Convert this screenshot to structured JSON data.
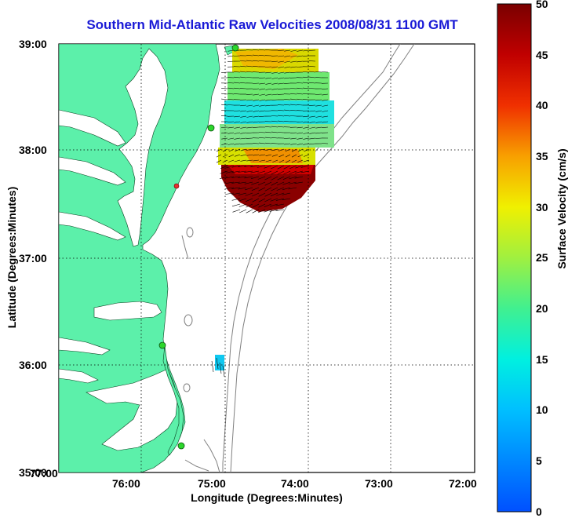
{
  "title": "Southern Mid-Atlantic Raw Velocities 2008/08/31 1100 GMT",
  "xlabel": "Longitude (Degrees:Minutes)",
  "ylabel": "Latitude (Degrees:Minutes)",
  "colorbar": {
    "label": "Surface Velocity (cm/s)",
    "ticks": [
      "0",
      "5",
      "10",
      "15",
      "20",
      "25",
      "30",
      "35",
      "40",
      "45",
      "50"
    ],
    "range": [
      0,
      50
    ]
  },
  "x_ticks": [
    "77:00",
    "76:00",
    "75:00",
    "74:00",
    "73:00",
    "72:00"
  ],
  "y_ticks": [
    "39:00",
    "38:00",
    "37:00",
    "36:00",
    "35:00"
  ],
  "colors": {
    "land": "#5cf0aa",
    "water": "#ffffff",
    "title": "#1a1ad6",
    "station": "#2bd62b",
    "station_offline": "#e83030"
  }
}
